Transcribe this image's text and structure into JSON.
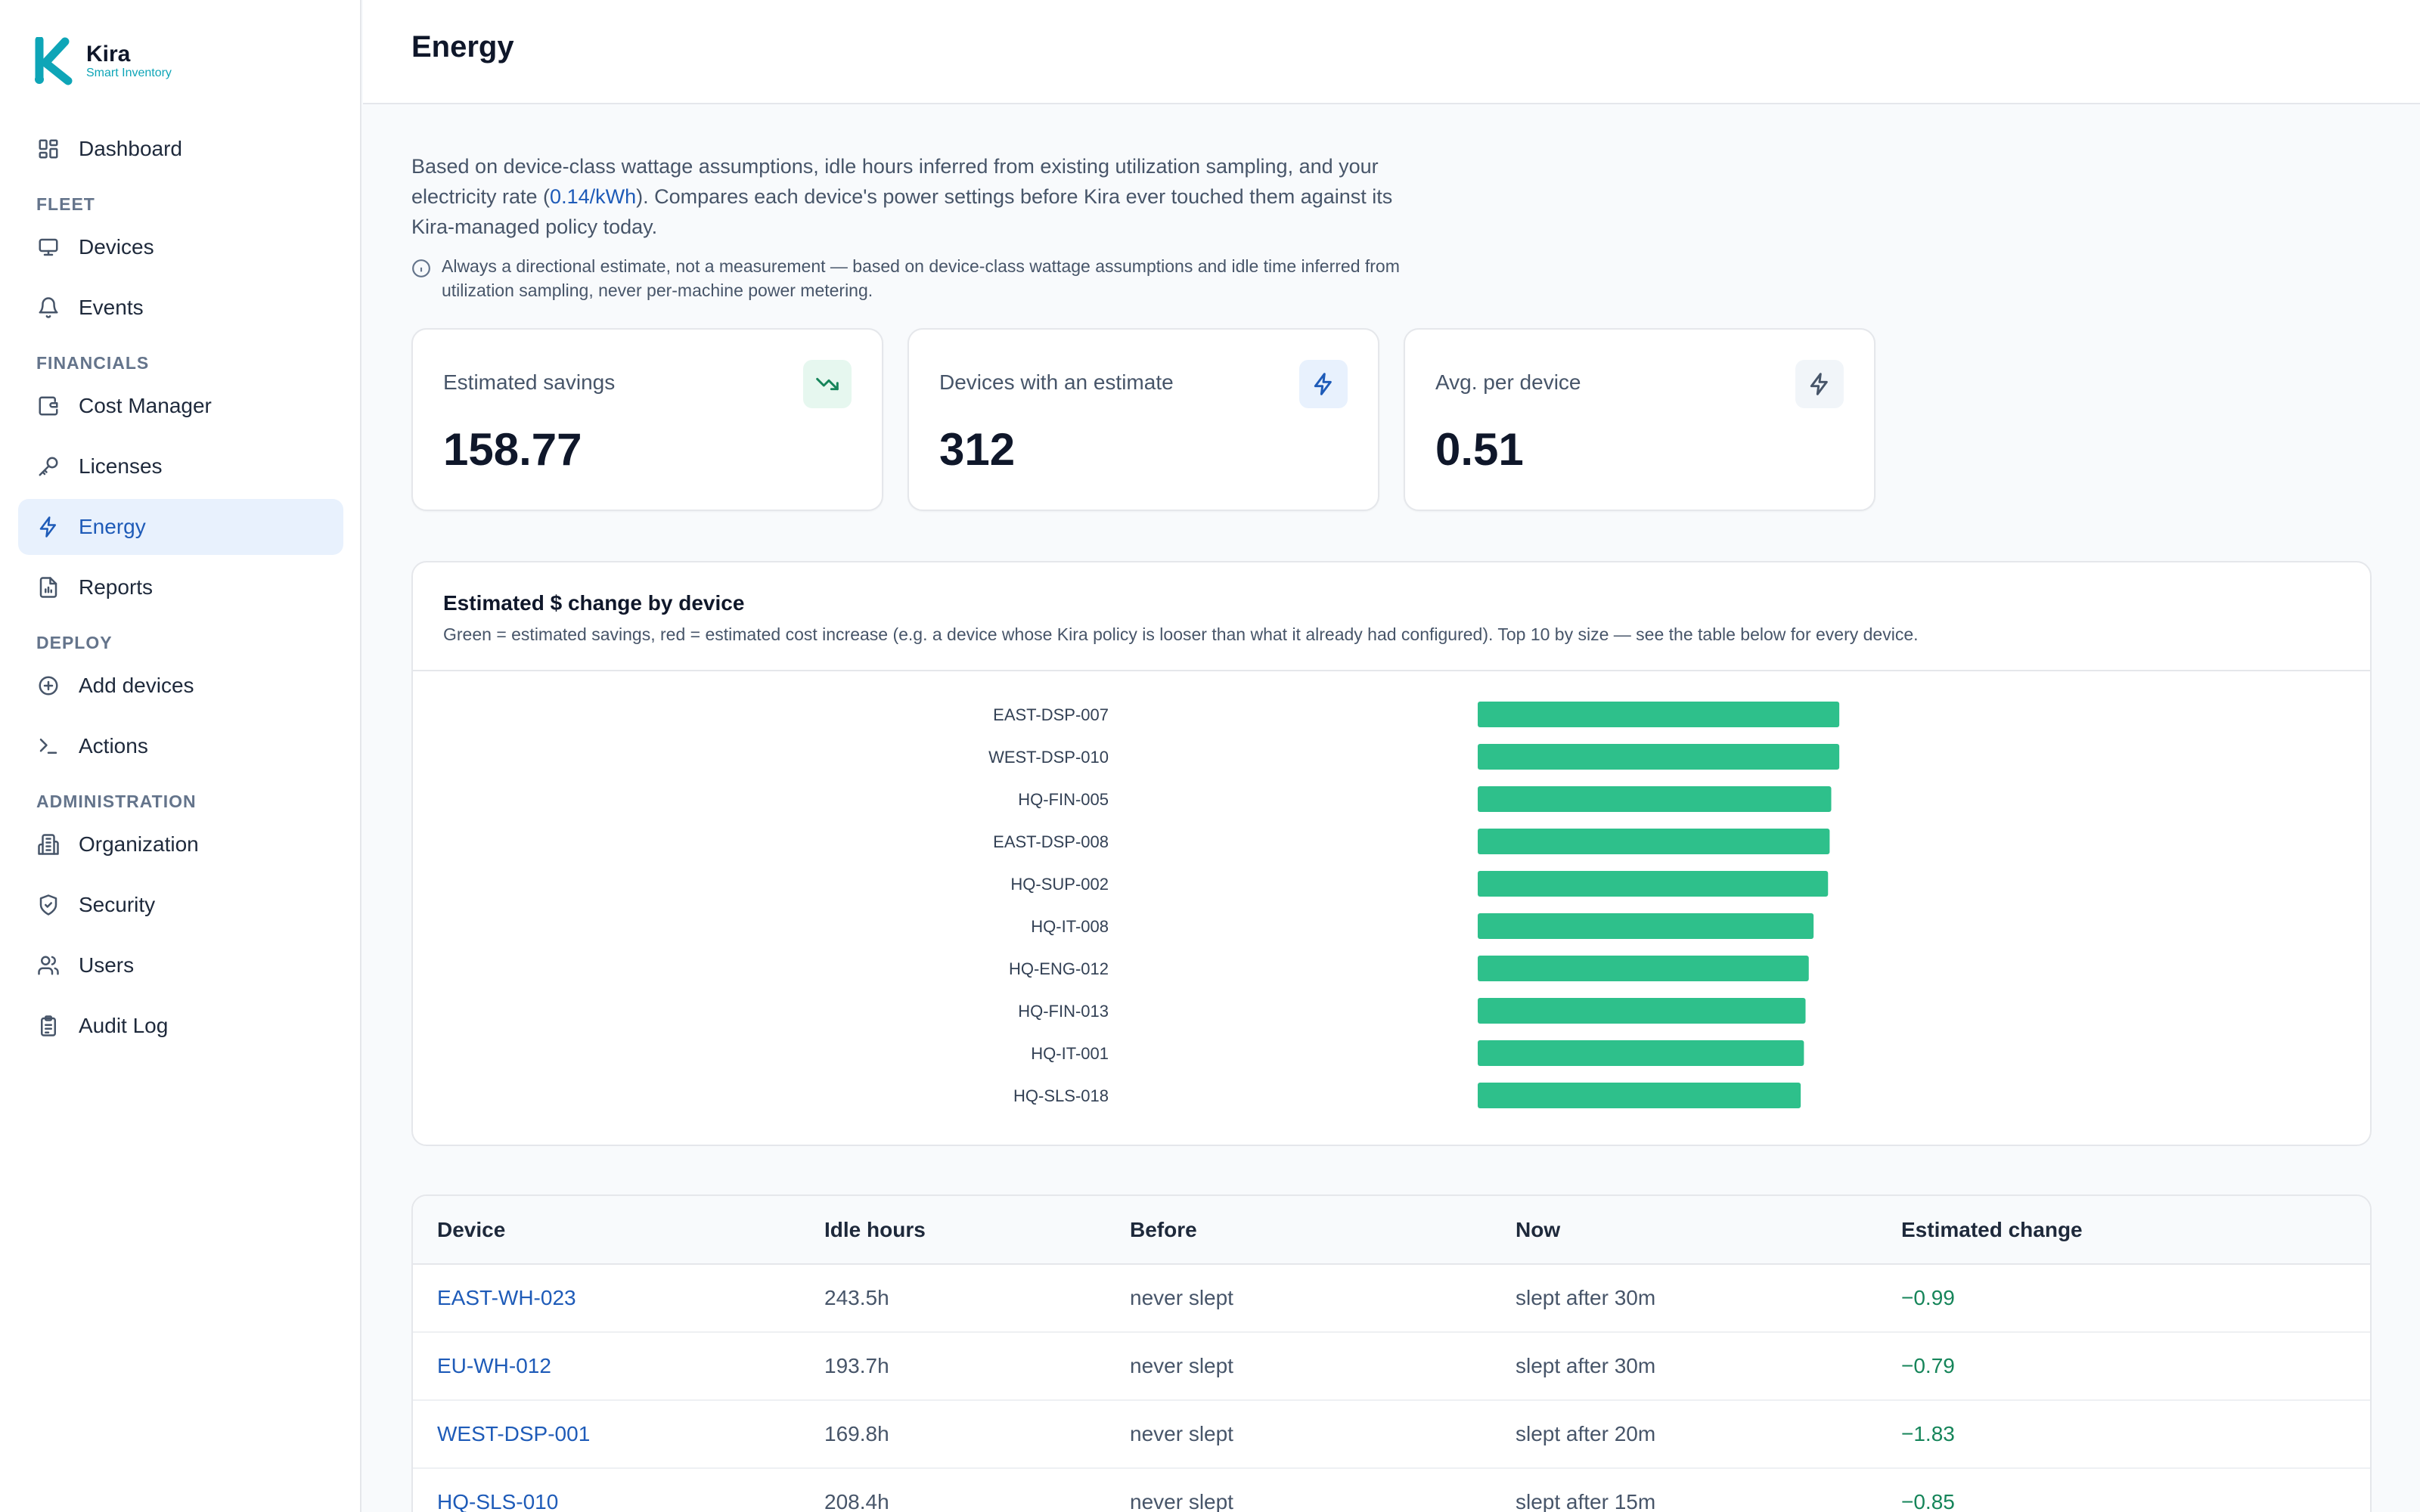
{
  "brand": {
    "name": "Kira",
    "subtitle": "Smart Inventory"
  },
  "sidebar": {
    "dashboard": "Dashboard",
    "sections": {
      "fleet": "FLEET",
      "financials": "FINANCIALS",
      "deploy": "DEPLOY",
      "administration": "ADMINISTRATION"
    },
    "items": {
      "devices": "Devices",
      "events": "Events",
      "cost_manager": "Cost Manager",
      "licenses": "Licenses",
      "energy": "Energy",
      "reports": "Reports",
      "add_devices": "Add devices",
      "actions": "Actions",
      "organization": "Organization",
      "security": "Security",
      "users": "Users",
      "audit_log": "Audit Log"
    },
    "active": "energy"
  },
  "header": {
    "title": "Energy"
  },
  "intro": {
    "text_before": "Based on device-class wattage assumptions, idle hours inferred from existing utilization sampling, and your electricity rate (",
    "rate": "0.14/kWh",
    "text_after": "). Compares each device's power settings before Kira ever touched them against its Kira-managed policy today.",
    "note": "Always a directional estimate, not a measurement — based on device-class wattage assumptions and idle time inferred from utilization sampling, never per-machine power metering."
  },
  "stats": [
    {
      "label": "Estimated savings",
      "value": "158.77",
      "icon": "trending-down-icon"
    },
    {
      "label": "Devices with an estimate",
      "value": "312",
      "icon": "bolt-icon"
    },
    {
      "label": "Avg. per device",
      "value": "0.51",
      "icon": "bolt-icon"
    }
  ],
  "colors": {
    "accent": "#1e5bb8",
    "savings_bar": "#2ec08b",
    "savings_text": "#16855a",
    "active_nav_bg": "#e8f1fd"
  },
  "chart": {
    "title": "Estimated $ change by device",
    "subtitle": "Green = estimated savings, red = estimated cost increase (e.g. a device whose Kira policy is looser than what it already had configured). Top 10 by size — see the table below for every device."
  },
  "chart_data": {
    "type": "bar",
    "orientation": "horizontal",
    "categories": [
      "EAST-DSP-007",
      "WEST-DSP-010",
      "HQ-FIN-005",
      "EAST-DSP-008",
      "HQ-SUP-002",
      "HQ-IT-008",
      "HQ-ENG-012",
      "HQ-FIN-013",
      "HQ-IT-001",
      "HQ-SLS-018"
    ],
    "values": [
      -2.25,
      -2.25,
      -2.2,
      -2.19,
      -2.18,
      -2.09,
      -2.06,
      -2.04,
      -2.03,
      -2.01
    ],
    "xlim": [
      -2.4,
      0
    ],
    "axis_labels_visible": false,
    "grid": false,
    "title": "Estimated $ change by device"
  },
  "table": {
    "columns": [
      "Device",
      "Idle hours",
      "Before",
      "Now",
      "Estimated change"
    ],
    "rows": [
      [
        "EAST-WH-023",
        "243.5h",
        "never slept",
        "slept after 30m",
        "−0.99"
      ],
      [
        "EU-WH-012",
        "193.7h",
        "never slept",
        "slept after 30m",
        "−0.79"
      ],
      [
        "WEST-DSP-001",
        "169.8h",
        "never slept",
        "slept after 20m",
        "−1.83"
      ],
      [
        "HQ-SLS-010",
        "208.4h",
        "never slept",
        "slept after 15m",
        "−0.85"
      ]
    ]
  }
}
